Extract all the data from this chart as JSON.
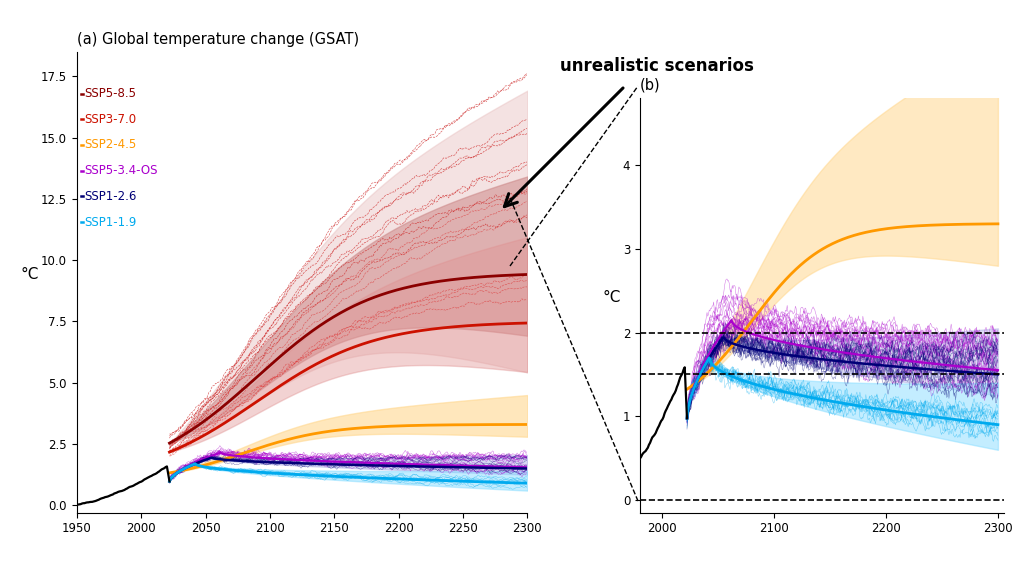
{
  "title_a": "(a) Global temperature change (GSAT)",
  "title_b": "(b)",
  "annotation": "unrealistic scenarios",
  "ylabel": "°C",
  "xlim_a": [
    1950,
    2300
  ],
  "ylim_a": [
    -0.3,
    18.5
  ],
  "xlim_b": [
    1980,
    2305
  ],
  "ylim_b": [
    -0.15,
    4.8
  ],
  "yticks_a": [
    0.0,
    2.5,
    5.0,
    7.5,
    10.0,
    12.5,
    15.0,
    17.5
  ],
  "yticks_b": [
    0,
    1,
    2,
    3,
    4
  ],
  "xticks_a": [
    1950,
    2000,
    2050,
    2100,
    2150,
    2200,
    2250,
    2300
  ],
  "xticks_b": [
    2000,
    2100,
    2200,
    2300
  ],
  "dashed_lines_b": [
    0.0,
    1.5,
    2.0
  ],
  "legend_items": [
    [
      "SSP5-8.5",
      "#8B0000"
    ],
    [
      "SSP3-7.0",
      "#CC1100"
    ],
    [
      "SSP2-4.5",
      "#FF9900"
    ],
    [
      "SSP5-3.4-OS",
      "#AA00CC"
    ],
    [
      "SSP1-2.6",
      "#000077"
    ],
    [
      "SSP1-1.9",
      "#00AAEE"
    ]
  ],
  "seed": 42,
  "bg_color": "#ffffff"
}
